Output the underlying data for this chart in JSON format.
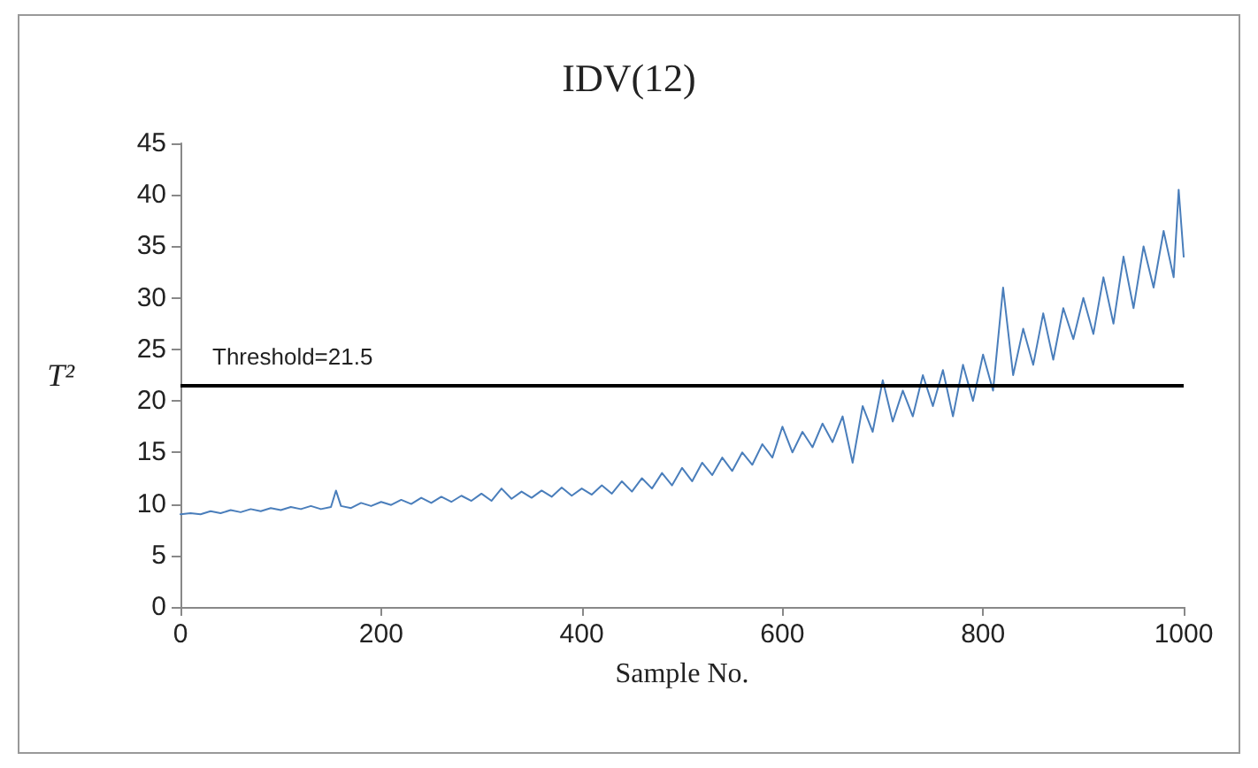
{
  "chart_data": {
    "type": "line",
    "title": "IDV(12)",
    "xlabel": "Sample No.",
    "ylabel": "T²",
    "x": [
      0,
      10,
      20,
      30,
      40,
      50,
      60,
      70,
      80,
      90,
      100,
      110,
      120,
      130,
      140,
      150,
      155,
      160,
      170,
      180,
      190,
      200,
      210,
      220,
      230,
      240,
      250,
      260,
      270,
      280,
      290,
      300,
      310,
      320,
      330,
      340,
      350,
      360,
      370,
      380,
      390,
      400,
      410,
      420,
      430,
      440,
      450,
      460,
      470,
      480,
      490,
      500,
      510,
      520,
      530,
      540,
      550,
      560,
      570,
      580,
      590,
      600,
      610,
      620,
      630,
      640,
      650,
      660,
      670,
      680,
      690,
      700,
      710,
      720,
      730,
      740,
      750,
      760,
      770,
      780,
      790,
      800,
      810,
      820,
      830,
      840,
      850,
      860,
      870,
      880,
      890,
      900,
      910,
      920,
      930,
      940,
      950,
      960,
      970,
      980,
      990,
      995,
      1000
    ],
    "series": [
      {
        "color": "#4a7ebb",
        "values": [
          9.0,
          9.1,
          9.0,
          9.3,
          9.1,
          9.4,
          9.2,
          9.5,
          9.3,
          9.6,
          9.4,
          9.7,
          9.5,
          9.8,
          9.5,
          9.7,
          11.3,
          9.8,
          9.6,
          10.1,
          9.8,
          10.2,
          9.9,
          10.4,
          10.0,
          10.6,
          10.1,
          10.7,
          10.2,
          10.8,
          10.3,
          11.0,
          10.3,
          11.5,
          10.5,
          11.2,
          10.6,
          11.3,
          10.7,
          11.6,
          10.8,
          11.5,
          10.9,
          11.8,
          11.0,
          12.2,
          11.2,
          12.5,
          11.5,
          13.0,
          11.8,
          13.5,
          12.2,
          14.0,
          12.8,
          14.5,
          13.2,
          15.0,
          13.8,
          15.8,
          14.5,
          17.5,
          15.0,
          17.0,
          15.5,
          17.8,
          16.0,
          18.5,
          14.0,
          19.5,
          17.0,
          22.0,
          18.0,
          21.0,
          18.5,
          22.5,
          19.5,
          23.0,
          18.5,
          23.5,
          20.0,
          24.5,
          21.0,
          31.0,
          22.5,
          27.0,
          23.5,
          28.5,
          24.0,
          29.0,
          26.0,
          30.0,
          26.5,
          32.0,
          27.5,
          34.0,
          29.0,
          35.0,
          31.0,
          36.5,
          32.0,
          40.5,
          34.0
        ]
      }
    ],
    "xlim": [
      0,
      1000
    ],
    "xticks": [
      0,
      200,
      400,
      600,
      800,
      1000
    ],
    "ylim": [
      0,
      45
    ],
    "yticks": [
      0,
      5,
      10,
      15,
      20,
      25,
      30,
      35,
      40,
      45
    ],
    "ref_lines": [
      {
        "axis": "y",
        "value": 21.5,
        "label": "Threshold=21.5",
        "color": "#000000"
      }
    ],
    "grid": false,
    "marker": "none",
    "line_style": "solid"
  }
}
